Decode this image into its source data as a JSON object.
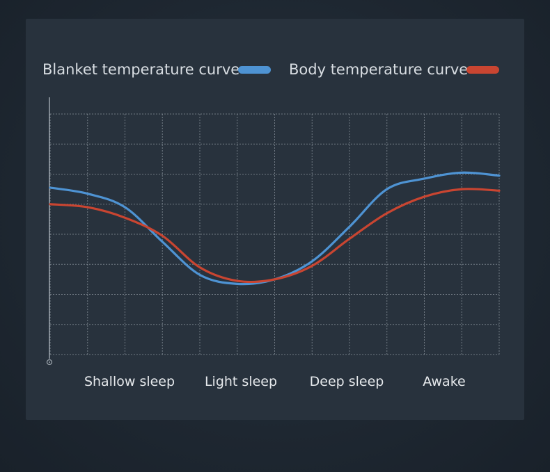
{
  "colors": {
    "blanket": "#4e93d3",
    "body": "#c94531",
    "grid": "#8a939c",
    "axis": "#9aa3ab"
  },
  "chart_data": {
    "type": "line",
    "title": "",
    "xlabel": "",
    "ylabel": "",
    "legend_position": "top",
    "grid": true,
    "categories": [
      "Shallow sleep",
      "Light sleep",
      "Deep sleep",
      "Awake"
    ],
    "xlim": [
      0,
      12
    ],
    "ylim": [
      0,
      8
    ],
    "series": [
      {
        "name": "Blanket temperature curve",
        "color": "#4e93d3",
        "x": [
          0,
          1,
          2,
          3,
          4,
          5,
          6,
          7,
          8,
          9,
          10,
          11,
          12
        ],
        "y": [
          5.55,
          5.35,
          4.9,
          3.75,
          2.65,
          2.35,
          2.5,
          3.1,
          4.25,
          5.5,
          5.85,
          6.05,
          5.95
        ]
      },
      {
        "name": "Body temperature curve",
        "color": "#c94531",
        "x": [
          0,
          1,
          2,
          3,
          4,
          5,
          6,
          7,
          8,
          9,
          10,
          11,
          12
        ],
        "y": [
          5.0,
          4.9,
          4.55,
          3.95,
          2.9,
          2.45,
          2.5,
          2.95,
          3.85,
          4.7,
          5.25,
          5.5,
          5.45
        ]
      }
    ]
  }
}
